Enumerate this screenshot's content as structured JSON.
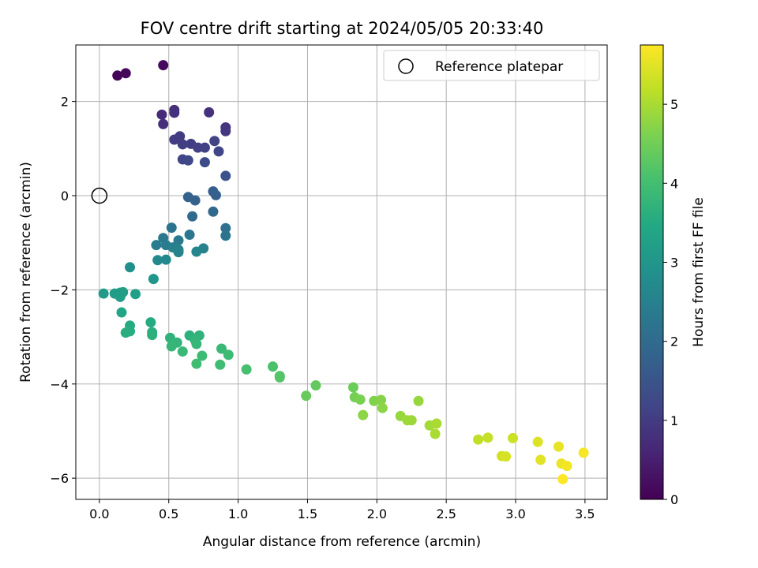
{
  "chart_data": {
    "type": "scatter",
    "title": "FOV centre drift starting at 2024/05/05 20:33:40",
    "xlabel": "Angular distance from reference (arcmin)",
    "ylabel": "Rotation from reference (arcmin)",
    "xlim": [
      -0.17,
      3.66
    ],
    "ylim": [
      -6.45,
      3.2
    ],
    "xticks": [
      0.0,
      0.5,
      1.0,
      1.5,
      2.0,
      2.5,
      3.0,
      3.5
    ],
    "xtick_labels": [
      "0.0",
      "0.5",
      "1.0",
      "1.5",
      "2.0",
      "2.5",
      "3.0",
      "3.5"
    ],
    "yticks": [
      -6,
      -4,
      -2,
      0,
      2
    ],
    "ytick_labels": [
      "−6",
      "−4",
      "−2",
      "0",
      "2"
    ],
    "grid": true,
    "legend": {
      "position": "top-right",
      "entries": [
        "Reference platepar"
      ]
    },
    "reference_point": {
      "label": "Reference platepar",
      "x": 0.0,
      "y": 0.0
    },
    "colorbar": {
      "label": "Hours from first FF file",
      "colormap": "viridis",
      "range": [
        0,
        5.75
      ],
      "ticks": [
        0,
        1,
        2,
        3,
        4,
        5
      ],
      "tick_labels": [
        "0",
        "1",
        "2",
        "3",
        "4",
        "5"
      ]
    },
    "points": [
      {
        "x": 0.13,
        "y": 2.55,
        "c": 0.05
      },
      {
        "x": 0.19,
        "y": 2.6,
        "c": 0.1
      },
      {
        "x": 0.46,
        "y": 2.77,
        "c": 0.15
      },
      {
        "x": 0.45,
        "y": 1.72,
        "c": 0.7
      },
      {
        "x": 0.46,
        "y": 1.52,
        "c": 0.75
      },
      {
        "x": 0.54,
        "y": 1.82,
        "c": 0.75
      },
      {
        "x": 0.54,
        "y": 1.76,
        "c": 0.8
      },
      {
        "x": 0.79,
        "y": 1.77,
        "c": 0.8
      },
      {
        "x": 0.91,
        "y": 1.45,
        "c": 0.85
      },
      {
        "x": 0.91,
        "y": 1.37,
        "c": 0.9
      },
      {
        "x": 0.54,
        "y": 1.19,
        "c": 1.0
      },
      {
        "x": 0.58,
        "y": 1.26,
        "c": 1.0
      },
      {
        "x": 0.6,
        "y": 1.09,
        "c": 1.05
      },
      {
        "x": 0.66,
        "y": 1.1,
        "c": 1.05
      },
      {
        "x": 0.71,
        "y": 1.02,
        "c": 1.1
      },
      {
        "x": 0.76,
        "y": 1.02,
        "c": 1.1
      },
      {
        "x": 0.83,
        "y": 1.16,
        "c": 1.15
      },
      {
        "x": 0.86,
        "y": 0.94,
        "c": 1.2
      },
      {
        "x": 0.6,
        "y": 0.77,
        "c": 1.2
      },
      {
        "x": 0.64,
        "y": 0.75,
        "c": 1.25
      },
      {
        "x": 0.76,
        "y": 0.71,
        "c": 1.3
      },
      {
        "x": 0.91,
        "y": 0.42,
        "c": 1.45
      },
      {
        "x": 0.82,
        "y": 0.09,
        "c": 1.7
      },
      {
        "x": 0.84,
        "y": 0.01,
        "c": 1.75
      },
      {
        "x": 0.64,
        "y": -0.03,
        "c": 1.8
      },
      {
        "x": 0.69,
        "y": -0.1,
        "c": 1.8
      },
      {
        "x": 0.82,
        "y": -0.34,
        "c": 1.95
      },
      {
        "x": 0.67,
        "y": -0.44,
        "c": 2.0
      },
      {
        "x": 0.91,
        "y": -0.69,
        "c": 2.15
      },
      {
        "x": 0.91,
        "y": -0.85,
        "c": 2.2
      },
      {
        "x": 0.52,
        "y": -0.68,
        "c": 2.2
      },
      {
        "x": 0.65,
        "y": -0.83,
        "c": 2.25
      },
      {
        "x": 0.46,
        "y": -0.9,
        "c": 2.3
      },
      {
        "x": 0.57,
        "y": -0.95,
        "c": 2.35
      },
      {
        "x": 0.41,
        "y": -1.05,
        "c": 2.4
      },
      {
        "x": 0.48,
        "y": -1.05,
        "c": 2.4
      },
      {
        "x": 0.53,
        "y": -1.1,
        "c": 2.45
      },
      {
        "x": 0.57,
        "y": -1.15,
        "c": 2.5
      },
      {
        "x": 0.57,
        "y": -1.2,
        "c": 2.55
      },
      {
        "x": 0.75,
        "y": -1.12,
        "c": 2.55
      },
      {
        "x": 0.7,
        "y": -1.19,
        "c": 2.6
      },
      {
        "x": 0.42,
        "y": -1.37,
        "c": 2.7
      },
      {
        "x": 0.48,
        "y": -1.36,
        "c": 2.7
      },
      {
        "x": 0.22,
        "y": -1.52,
        "c": 2.85
      },
      {
        "x": 0.39,
        "y": -1.77,
        "c": 3.0
      },
      {
        "x": 0.03,
        "y": -2.08,
        "c": 3.1
      },
      {
        "x": 0.11,
        "y": -2.08,
        "c": 3.15
      },
      {
        "x": 0.15,
        "y": -2.06,
        "c": 3.15
      },
      {
        "x": 0.17,
        "y": -2.05,
        "c": 3.2
      },
      {
        "x": 0.15,
        "y": -2.15,
        "c": 3.2
      },
      {
        "x": 0.26,
        "y": -2.09,
        "c": 3.25
      },
      {
        "x": 0.16,
        "y": -2.48,
        "c": 3.4
      },
      {
        "x": 0.37,
        "y": -2.69,
        "c": 3.5
      },
      {
        "x": 0.22,
        "y": -2.76,
        "c": 3.5
      },
      {
        "x": 0.22,
        "y": -2.88,
        "c": 3.55
      },
      {
        "x": 0.19,
        "y": -2.91,
        "c": 3.6
      },
      {
        "x": 0.38,
        "y": -2.9,
        "c": 3.6
      },
      {
        "x": 0.38,
        "y": -2.96,
        "c": 3.65
      },
      {
        "x": 0.65,
        "y": -2.97,
        "c": 3.65
      },
      {
        "x": 0.72,
        "y": -2.97,
        "c": 3.7
      },
      {
        "x": 0.51,
        "y": -3.02,
        "c": 3.7
      },
      {
        "x": 0.56,
        "y": -3.12,
        "c": 3.75
      },
      {
        "x": 0.69,
        "y": -3.07,
        "c": 3.75
      },
      {
        "x": 0.7,
        "y": -3.15,
        "c": 3.8
      },
      {
        "x": 0.52,
        "y": -3.2,
        "c": 3.8
      },
      {
        "x": 0.6,
        "y": -3.31,
        "c": 3.85
      },
      {
        "x": 0.88,
        "y": -3.25,
        "c": 3.85
      },
      {
        "x": 0.74,
        "y": -3.4,
        "c": 3.9
      },
      {
        "x": 0.93,
        "y": -3.38,
        "c": 3.9
      },
      {
        "x": 0.7,
        "y": -3.57,
        "c": 3.95
      },
      {
        "x": 0.87,
        "y": -3.59,
        "c": 3.95
      },
      {
        "x": 1.06,
        "y": -3.69,
        "c": 4.05
      },
      {
        "x": 1.25,
        "y": -3.63,
        "c": 4.1
      },
      {
        "x": 1.3,
        "y": -3.83,
        "c": 4.15
      },
      {
        "x": 1.3,
        "y": -3.86,
        "c": 4.2
      },
      {
        "x": 1.56,
        "y": -4.03,
        "c": 4.35
      },
      {
        "x": 1.49,
        "y": -4.25,
        "c": 4.4
      },
      {
        "x": 1.83,
        "y": -4.07,
        "c": 4.45
      },
      {
        "x": 1.84,
        "y": -4.28,
        "c": 4.55
      },
      {
        "x": 1.88,
        "y": -4.33,
        "c": 4.6
      },
      {
        "x": 1.98,
        "y": -4.36,
        "c": 4.65
      },
      {
        "x": 2.03,
        "y": -4.34,
        "c": 4.7
      },
      {
        "x": 2.04,
        "y": -4.51,
        "c": 4.75
      },
      {
        "x": 1.9,
        "y": -4.66,
        "c": 4.75
      },
      {
        "x": 2.3,
        "y": -4.36,
        "c": 4.85
      },
      {
        "x": 2.17,
        "y": -4.68,
        "c": 4.85
      },
      {
        "x": 2.22,
        "y": -4.77,
        "c": 4.9
      },
      {
        "x": 2.25,
        "y": -4.77,
        "c": 4.9
      },
      {
        "x": 2.38,
        "y": -4.88,
        "c": 4.95
      },
      {
        "x": 2.43,
        "y": -4.84,
        "c": 5.0
      },
      {
        "x": 2.42,
        "y": -5.06,
        "c": 5.0
      },
      {
        "x": 2.73,
        "y": -5.18,
        "c": 5.2
      },
      {
        "x": 2.8,
        "y": -5.14,
        "c": 5.25
      },
      {
        "x": 2.98,
        "y": -5.15,
        "c": 5.3
      },
      {
        "x": 2.9,
        "y": -5.53,
        "c": 5.35
      },
      {
        "x": 2.93,
        "y": -5.54,
        "c": 5.4
      },
      {
        "x": 3.16,
        "y": -5.23,
        "c": 5.45
      },
      {
        "x": 3.18,
        "y": -5.61,
        "c": 5.5
      },
      {
        "x": 3.31,
        "y": -5.33,
        "c": 5.55
      },
      {
        "x": 3.33,
        "y": -5.69,
        "c": 5.6
      },
      {
        "x": 3.37,
        "y": -5.74,
        "c": 5.65
      },
      {
        "x": 3.49,
        "y": -5.46,
        "c": 5.7
      },
      {
        "x": 3.34,
        "y": -6.02,
        "c": 5.75
      }
    ]
  }
}
